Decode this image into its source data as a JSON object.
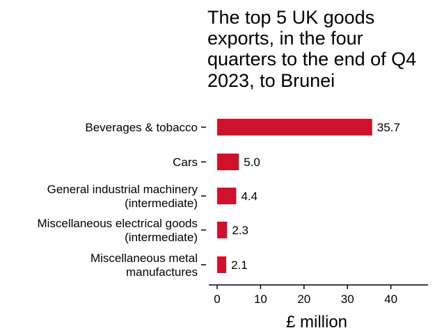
{
  "chart_data": {
    "type": "bar",
    "orientation": "horizontal",
    "title": "The top 5 UK goods exports, in the four quarters to the end of Q4 2023, to Brunei",
    "categories": [
      [
        "Beverages & tobacco"
      ],
      [
        "Cars"
      ],
      [
        "General industrial machinery",
        "(intermediate)"
      ],
      [
        "Miscellaneous electrical goods",
        "(intermediate)"
      ],
      [
        "Miscellaneous metal",
        "manufactures"
      ]
    ],
    "values": [
      35.7,
      5.0,
      4.4,
      2.3,
      2.1
    ],
    "value_labels": [
      "35.7",
      "5.0",
      "4.4",
      "2.3",
      "2.1"
    ],
    "xlabel": "£ million",
    "xlim": [
      0,
      48
    ],
    "xticks": [
      0,
      10,
      20,
      30,
      40
    ],
    "grid": false,
    "bar_color": "#d0112b"
  }
}
